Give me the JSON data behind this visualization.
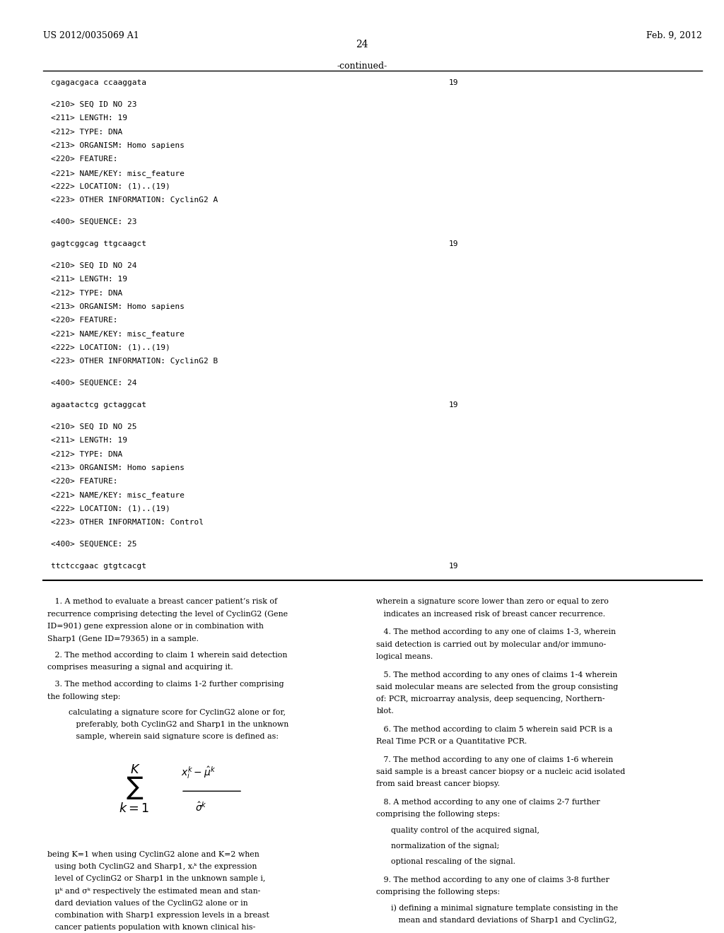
{
  "header_left": "US 2012/0035069 A1",
  "header_right": "Feb. 9, 2012",
  "page_number": "24",
  "continued_label": "-continued-",
  "background_color": "#ffffff",
  "text_color": "#000000",
  "monospace_lines": [
    [
      "cgagacgaca ccaaggata",
      "19"
    ],
    "",
    [
      "<210> SEQ ID NO 23"
    ],
    [
      "<211> LENGTH: 19"
    ],
    [
      "<212> TYPE: DNA"
    ],
    [
      "<213> ORGANISM: Homo sapiens"
    ],
    [
      "<220> FEATURE:"
    ],
    [
      "<221> NAME/KEY: misc_feature"
    ],
    [
      "<222> LOCATION: (1)..(19)"
    ],
    [
      "<223> OTHER INFORMATION: CyclinG2 A"
    ],
    "",
    [
      "<400> SEQUENCE: 23"
    ],
    "",
    [
      "gagtcggcag ttgcaagct",
      "19"
    ],
    "",
    [
      "<210> SEQ ID NO 24"
    ],
    [
      "<211> LENGTH: 19"
    ],
    [
      "<212> TYPE: DNA"
    ],
    [
      "<213> ORGANISM: Homo sapiens"
    ],
    [
      "<220> FEATURE:"
    ],
    [
      "<221> NAME/KEY: misc_feature"
    ],
    [
      "<222> LOCATION: (1)..(19)"
    ],
    [
      "<223> OTHER INFORMATION: CyclinG2 B"
    ],
    "",
    [
      "<400> SEQUENCE: 24"
    ],
    "",
    [
      "agaatactcg gctaggcat",
      "19"
    ],
    "",
    [
      "<210> SEQ ID NO 25"
    ],
    [
      "<211> LENGTH: 19"
    ],
    [
      "<212> TYPE: DNA"
    ],
    [
      "<213> ORGANISM: Homo sapiens"
    ],
    [
      "<220> FEATURE:"
    ],
    [
      "<221> NAME/KEY: misc_feature"
    ],
    [
      "<222> LOCATION: (1)..(19)"
    ],
    [
      "<223> OTHER INFORMATION: Control"
    ],
    "",
    [
      "<400> SEQUENCE: 25"
    ],
    "",
    [
      "ttctccgaac gtgtcacgt",
      "19"
    ]
  ],
  "claims_left": [
    {
      "indent": 0,
      "text": "   1. A method to evaluate a breast cancer patient’s risk of recurrence comprising detecting the level of CyclinG2 (Gene ID=901) gene expression alone or in combination with Sharp1 (Gene ID=79365) in a sample."
    },
    {
      "indent": 0,
      "text": "   2. The method according to claim 1 wherein said detection comprises measuring a signal and acquiring it."
    },
    {
      "indent": 0,
      "text": "   3. The method according to claims 1-2 further comprising the following step:"
    },
    {
      "indent": 1,
      "text": "   calculating a signature score for CyclinG2 alone or for, preferably, both CyclinG2 and Sharp1 in the unknown sample, wherein said signature score is defined as:"
    },
    {
      "indent": 0,
      "text": "being K=1 when using CyclinG2 alone and K=2 when using both CyclinG2 and Sharp1, xᵢᵏ the expression level of CyclinG2 or Sharp1 in the unknown sample i, μᵏ and σᵏ respectively the estimated mean and standard deviation values of the CyclinG2 alone or in combination with Sharp1 expression levels in a breast cancer patients population with known clinical history,"
    }
  ],
  "claims_right": [
    {
      "text": "wherein a signature score lower than zero or equal to zero indicates an increased risk of breast cancer recurrence."
    },
    {
      "text": "   4. The method according to any one of claims 1-3, wherein said detection is carried out by molecular and/or immunological means."
    },
    {
      "text": "   5. The method according to any ones of claims 1-4 wherein said molecular means are selected from the group consisting of: PCR, microarray analysis, deep sequencing, Northern-blot."
    },
    {
      "text": "   6. The method according to claim 5 wherein said PCR is a Real Time PCR or a Quantitative PCR."
    },
    {
      "text": "   7. The method according to any one of claims 1-6 wherein said sample is a breast cancer biopsy or a nucleic acid isolated from said breast cancer biopsy."
    },
    {
      "text": "   8. A method according to any one of claims 2-7 further comprising the following steps:"
    },
    {
      "text": "   quality control of the acquired signal,"
    },
    {
      "text": "   normalization of the signal;"
    },
    {
      "text": "   optional rescaling of the signal."
    },
    {
      "text": "   9. The method according to any one of claims 3-8 further comprising the following steps:"
    },
    {
      "text": "   i) defining a minimal signature template consisting in the mean and standard deviations of Sharp1 and CyclinG2,"
    }
  ]
}
